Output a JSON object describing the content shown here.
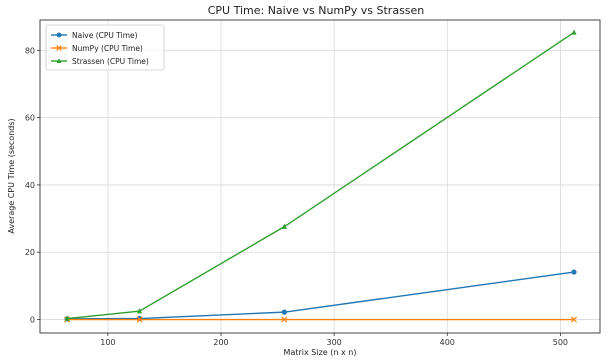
{
  "chart_data": {
    "type": "line",
    "title": "CPU Time: Naive vs NumPy vs Strassen",
    "xlabel": "Matrix Size (n x n)",
    "ylabel": "Average CPU Time (seconds)",
    "x": [
      64,
      128,
      256,
      512
    ],
    "xlim": [
      40,
      535
    ],
    "ylim": [
      -4,
      89
    ],
    "xticks": [
      100,
      200,
      300,
      400,
      500
    ],
    "yticks": [
      0,
      20,
      40,
      60,
      80
    ],
    "grid": true,
    "legend_position": "top-left",
    "series": [
      {
        "name": "Naive (CPU Time)",
        "values": [
          0.2,
          0.3,
          2.2,
          14.1
        ],
        "color": "#1f77b4",
        "marker": "circle"
      },
      {
        "name": "NumPy (CPU Time)",
        "values": [
          0.0,
          0.0,
          0.0,
          0.0
        ],
        "color": "#ff7f0e",
        "marker": "x"
      },
      {
        "name": "Strassen (CPU Time)",
        "values": [
          0.3,
          2.5,
          27.6,
          85.3
        ],
        "color": "#2ca02c",
        "marker": "triangle"
      }
    ]
  }
}
